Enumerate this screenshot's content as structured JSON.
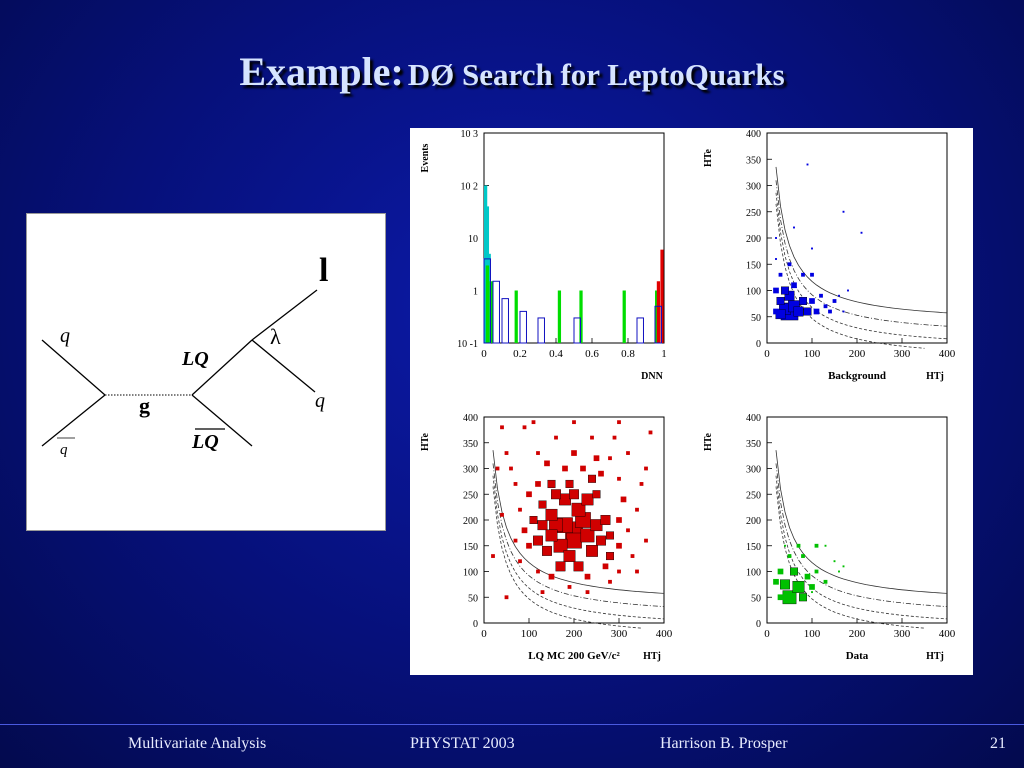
{
  "title": {
    "main": "Example:",
    "sub": "DØ Search for LeptoQuarks"
  },
  "feynman": {
    "q_in": "q",
    "qbar_in": "q",
    "gluon": "g",
    "lq": "LQ",
    "lq_bar": "LQ",
    "lambda": "λ",
    "lepton": "l",
    "q_out": "q"
  },
  "footer": {
    "left": "Multivariate Analysis",
    "center": "PHYSTAT 2003",
    "author": "Harrison B. Prosper",
    "page": "21"
  },
  "chart_data": [
    {
      "type": "bar",
      "panel": "histogram",
      "xlabel": "D_NN",
      "ylabel": "Events",
      "yscale": "log",
      "xlim": [
        0,
        1
      ],
      "ylim": [
        0.1,
        1000
      ],
      "xticks": [
        "0",
        "0.2",
        "0.4",
        "0.6",
        "0.8",
        "1"
      ],
      "yticks": [
        "10^-1",
        "1",
        "10",
        "10^2",
        "10^3"
      ],
      "series": [
        {
          "color": "#00c8c8",
          "bins": [
            [
              0.0,
              100
            ],
            [
              0.01,
              40
            ],
            [
              0.02,
              5
            ]
          ]
        },
        {
          "color": "#00dd00",
          "bins": [
            [
              0.01,
              3
            ],
            [
              0.03,
              1.5
            ],
            [
              0.17,
              1
            ],
            [
              0.41,
              1
            ],
            [
              0.53,
              1
            ],
            [
              0.77,
              1
            ],
            [
              0.95,
              1
            ]
          ]
        },
        {
          "color": "#e00000",
          "bins": [
            [
              0.96,
              1.5
            ],
            [
              0.98,
              6
            ]
          ]
        },
        {
          "color": "#1010c0",
          "style": "outline",
          "bins": [
            [
              0.0,
              4
            ],
            [
              0.05,
              1.5
            ],
            [
              0.1,
              0.7
            ],
            [
              0.2,
              0.4
            ],
            [
              0.3,
              0.3
            ],
            [
              0.5,
              0.3
            ],
            [
              0.85,
              0.3
            ],
            [
              0.95,
              0.5
            ]
          ]
        }
      ]
    },
    {
      "type": "scatter",
      "panel": "background",
      "label": "Background",
      "xlabel": "H_T^j",
      "ylabel": "H_T^e",
      "xlim": [
        0,
        400
      ],
      "ylim": [
        0,
        400
      ],
      "xticks": [
        "0",
        "100",
        "200",
        "300",
        "400"
      ],
      "yticks": [
        "0",
        "50",
        "100",
        "150",
        "200",
        "250",
        "300",
        "350",
        "400"
      ],
      "color": "#0000e0",
      "points": [
        [
          50,
          60,
          9
        ],
        [
          40,
          65,
          6
        ],
        [
          60,
          70,
          6
        ],
        [
          30,
          55,
          5
        ],
        [
          50,
          90,
          5
        ],
        [
          70,
          60,
          5
        ],
        [
          30,
          80,
          4
        ],
        [
          80,
          80,
          4
        ],
        [
          90,
          60,
          4
        ],
        [
          40,
          100,
          4
        ],
        [
          60,
          110,
          3
        ],
        [
          100,
          80,
          3
        ],
        [
          110,
          60,
          3
        ],
        [
          20,
          100,
          3
        ],
        [
          120,
          90,
          2
        ],
        [
          20,
          60,
          3
        ],
        [
          130,
          70,
          2
        ],
        [
          140,
          60,
          2
        ],
        [
          150,
          80,
          2
        ],
        [
          80,
          130,
          2
        ],
        [
          50,
          150,
          2
        ],
        [
          30,
          130,
          2
        ],
        [
          100,
          130,
          2
        ],
        [
          160,
          90,
          1
        ],
        [
          170,
          60,
          1
        ],
        [
          20,
          200,
          1
        ],
        [
          60,
          220,
          1
        ],
        [
          100,
          180,
          1
        ],
        [
          20,
          160,
          1
        ],
        [
          180,
          100,
          1
        ],
        [
          90,
          340,
          1
        ],
        [
          170,
          250,
          1
        ],
        [
          210,
          210,
          1
        ]
      ]
    },
    {
      "type": "scatter",
      "panel": "signal",
      "label": "LQ MC 200 GeV/c²",
      "xlabel": "H_T^j",
      "ylabel": "H_T^e",
      "xlim": [
        0,
        400
      ],
      "ylim": [
        0,
        400
      ],
      "xticks": [
        "0",
        "100",
        "200",
        "300",
        "400"
      ],
      "yticks": [
        "0",
        "50",
        "100",
        "150",
        "200",
        "250",
        "300",
        "350",
        "400"
      ],
      "color": "#d00000",
      "points": [
        [
          200,
          180,
          9
        ],
        [
          180,
          190,
          8
        ],
        [
          220,
          200,
          8
        ],
        [
          200,
          160,
          8
        ],
        [
          170,
          150,
          7
        ],
        [
          230,
          170,
          7
        ],
        [
          160,
          190,
          7
        ],
        [
          210,
          220,
          7
        ],
        [
          190,
          130,
          6
        ],
        [
          240,
          140,
          6
        ],
        [
          250,
          190,
          6
        ],
        [
          150,
          210,
          6
        ],
        [
          180,
          240,
          6
        ],
        [
          230,
          240,
          6
        ],
        [
          150,
          170,
          6
        ],
        [
          260,
          160,
          5
        ],
        [
          140,
          140,
          5
        ],
        [
          130,
          190,
          5
        ],
        [
          200,
          250,
          5
        ],
        [
          270,
          200,
          5
        ],
        [
          160,
          250,
          5
        ],
        [
          120,
          160,
          5
        ],
        [
          210,
          110,
          5
        ],
        [
          170,
          110,
          5
        ],
        [
          250,
          250,
          4
        ],
        [
          280,
          170,
          4
        ],
        [
          280,
          130,
          4
        ],
        [
          110,
          200,
          4
        ],
        [
          130,
          230,
          4
        ],
        [
          190,
          270,
          4
        ],
        [
          240,
          280,
          4
        ],
        [
          150,
          270,
          4
        ],
        [
          300,
          200,
          3
        ],
        [
          300,
          150,
          3
        ],
        [
          100,
          150,
          3
        ],
        [
          120,
          270,
          3
        ],
        [
          180,
          300,
          3
        ],
        [
          220,
          300,
          3
        ],
        [
          260,
          290,
          3
        ],
        [
          310,
          240,
          3
        ],
        [
          150,
          90,
          3
        ],
        [
          230,
          90,
          3
        ],
        [
          270,
          110,
          3
        ],
        [
          90,
          180,
          3
        ],
        [
          100,
          250,
          3
        ],
        [
          140,
          310,
          3
        ],
        [
          200,
          330,
          3
        ],
        [
          250,
          320,
          3
        ],
        [
          320,
          180,
          2
        ],
        [
          330,
          130,
          2
        ],
        [
          340,
          220,
          2
        ],
        [
          300,
          280,
          2
        ],
        [
          280,
          320,
          2
        ],
        [
          120,
          330,
          2
        ],
        [
          80,
          220,
          2
        ],
        [
          70,
          270,
          2
        ],
        [
          60,
          300,
          2
        ],
        [
          50,
          330,
          2
        ],
        [
          40,
          380,
          2
        ],
        [
          90,
          380,
          2
        ],
        [
          160,
          360,
          2
        ],
        [
          240,
          360,
          2
        ],
        [
          290,
          360,
          2
        ],
        [
          350,
          270,
          2
        ],
        [
          360,
          160,
          2
        ],
        [
          340,
          100,
          2
        ],
        [
          280,
          80,
          2
        ],
        [
          190,
          70,
          2
        ],
        [
          120,
          100,
          2
        ],
        [
          80,
          120,
          2
        ],
        [
          70,
          160,
          2
        ],
        [
          40,
          210,
          2
        ],
        [
          20,
          130,
          2
        ],
        [
          50,
          50,
          2
        ],
        [
          130,
          60,
          2
        ],
        [
          230,
          60,
          2
        ],
        [
          300,
          100,
          2
        ],
        [
          360,
          300,
          2
        ],
        [
          320,
          330,
          2
        ],
        [
          370,
          370,
          2
        ],
        [
          300,
          390,
          2
        ],
        [
          200,
          390,
          2
        ],
        [
          110,
          390,
          2
        ],
        [
          30,
          300,
          2
        ]
      ]
    },
    {
      "type": "scatter",
      "panel": "data",
      "label": "Data",
      "xlabel": "H_T^j",
      "ylabel": "H_T^e",
      "xlim": [
        0,
        400
      ],
      "ylim": [
        0,
        400
      ],
      "xticks": [
        "0",
        "100",
        "200",
        "300",
        "400"
      ],
      "yticks": [
        "0",
        "50",
        "100",
        "150",
        "200",
        "250",
        "300",
        "350",
        "400"
      ],
      "color": "#00c000",
      "points": [
        [
          50,
          50,
          7
        ],
        [
          70,
          70,
          6
        ],
        [
          40,
          75,
          5
        ],
        [
          80,
          50,
          4
        ],
        [
          60,
          100,
          4
        ],
        [
          30,
          100,
          3
        ],
        [
          90,
          90,
          3
        ],
        [
          100,
          70,
          3
        ],
        [
          30,
          50,
          3
        ],
        [
          20,
          80,
          3
        ],
        [
          50,
          130,
          2
        ],
        [
          80,
          130,
          2
        ],
        [
          110,
          100,
          2
        ],
        [
          130,
          80,
          2
        ],
        [
          70,
          150,
          2
        ],
        [
          110,
          150,
          2
        ],
        [
          130,
          150,
          1
        ],
        [
          150,
          120,
          1
        ],
        [
          160,
          100,
          1
        ],
        [
          170,
          110,
          1
        ],
        [
          40,
          150,
          1
        ],
        [
          100,
          60,
          1
        ]
      ]
    }
  ]
}
